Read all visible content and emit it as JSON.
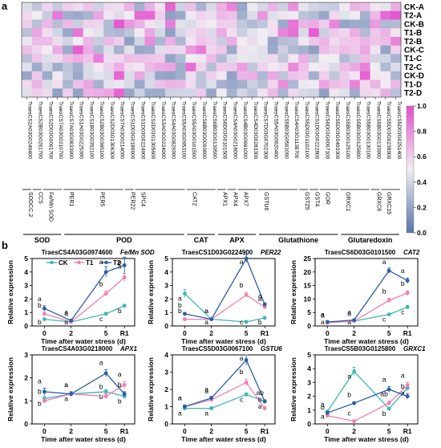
{
  "panels": {
    "a": "a",
    "b": "b"
  },
  "heatmap": {
    "rows": [
      "CK-A",
      "T2-A",
      "CK-B",
      "T1-B",
      "T2-B",
      "CK-C",
      "T1-C",
      "T2-C",
      "CK-D",
      "T1-D",
      "T2-D"
    ],
    "genes": [
      "TraesCS2A03G0249400",
      "TraesCS2B03G0261700",
      "TraesCS2D03G0061700",
      "TraesCS7A03G0210700",
      "TraesCS7A03G0833900",
      "TraesCS1A03G0225300",
      "TraesCS1B03G0352100",
      "TraesCS2B03G0365100",
      "TraesCS2D03G1306300",
      "TraesCS7A03G0214000",
      "TraesCS1D03G0186600",
      "TraesCS1D03G0224900",
      "TraesCS2D03G1305600",
      "TraesCS3A03G0224900",
      "TraesCS4A03G0829300",
      "TraesCS5A03G0953100",
      "TraesCS5A03G0101500",
      "TraesCS6B03G0093800",
      "TraesCS6B03G0139500",
      "TraesCS6D03G0101500",
      "TraesCS4A03G0218000",
      "TraesCS4B03G0661000",
      "TraesCS4D03G0283300",
      "TraesCS7D03G0702300",
      "TraesCS5A03G0620400",
      "TraesCS5B03G0561000",
      "TraesCS4A03G1138700",
      "TraesCS5D03G1102100",
      "TraesCS1D03G0222800",
      "TraesCS6D03G0067100",
      "TraesCS5D03G0493300",
      "TraesCS5B03G0125100",
      "TraesCS5B03G0125800",
      "TraesCS5B03G0130100",
      "TraesCS6B03G0133900",
      "TraesCS5D03G0238900",
      "TraesCS5D03G0251400"
    ],
    "colorbar": {
      "ticks": [
        "1.0",
        "0.8",
        "0.6",
        "0.4",
        "0.2",
        "0.0"
      ],
      "low": "#5874a9",
      "mid": "#f1eef3",
      "high": "#e44fcd"
    },
    "subgroups": [
      {
        "label": "SODCC.2",
        "start": 0,
        "end": 0
      },
      {
        "label": "CCS",
        "start": 1,
        "end": 1
      },
      {
        "label": "Fe/Mn SOD",
        "start": 2,
        "end": 3
      },
      {
        "label": "PER1",
        "start": 4,
        "end": 6
      },
      {
        "label": "PER5",
        "start": 7,
        "end": 9
      },
      {
        "label": "PER22",
        "start": 10,
        "end": 10
      },
      {
        "label": "SPC4",
        "start": 11,
        "end": 15
      },
      {
        "label": "CAT2",
        "start": 16,
        "end": 18
      },
      {
        "label": "APX1",
        "start": 19,
        "end": 19
      },
      {
        "label": "APX4",
        "start": 20,
        "end": 20
      },
      {
        "label": "APX7",
        "start": 21,
        "end": 22
      },
      {
        "label": "GSTU6",
        "start": 23,
        "end": 26
      },
      {
        "label": "GSTZ5",
        "start": 27,
        "end": 27
      },
      {
        "label": "GST4",
        "start": 28,
        "end": 28
      },
      {
        "label": "GOR",
        "start": 29,
        "end": 30
      },
      {
        "label": "GRXC1",
        "start": 31,
        "end": 33
      },
      {
        "label": "GRXC6",
        "start": 34,
        "end": 34
      },
      {
        "label": "GRXC15",
        "start": 35,
        "end": 36
      }
    ],
    "groups": [
      {
        "label": "SOD",
        "start": 0,
        "end": 3
      },
      {
        "label": "POD",
        "start": 4,
        "end": 15
      },
      {
        "label": "CAT",
        "start": 16,
        "end": 18
      },
      {
        "label": "APX",
        "start": 19,
        "end": 22
      },
      {
        "label": "Glutathione",
        "start": 23,
        "end": 30
      },
      {
        "label": "Glutaredoxin",
        "start": 31,
        "end": 36
      }
    ]
  },
  "chart_data": [
    {
      "type": "line",
      "title_id": "TraesCS4A03G0974600",
      "title_name": "Fe/Mn SOD",
      "x": [
        "0",
        "2",
        "5",
        "R1"
      ],
      "xlabel": "Time after water stress (d)",
      "ylabel": "Relative expression",
      "yticks": [
        0,
        1,
        2,
        3,
        4,
        5
      ],
      "ylim": [
        0,
        5
      ],
      "series": [
        {
          "name": "CK",
          "color": "#3fb7b7",
          "values": [
            0.5,
            0.3,
            0.9,
            1.5
          ],
          "err": [
            0.1,
            0.1,
            0.1,
            0.1
          ],
          "sig": [
            "b",
            "a",
            "c",
            "b"
          ]
        },
        {
          "name": "T1",
          "color": "#ee7fb3",
          "values": [
            0.9,
            0.3,
            2.4,
            3.6
          ],
          "err": [
            0.1,
            0.1,
            0.2,
            0.3
          ],
          "sig": [
            "b",
            "a",
            "b",
            "a"
          ]
        },
        {
          "name": "T2",
          "color": "#2a5ea8",
          "values": [
            1.3,
            0.4,
            4.0,
            4.5
          ],
          "err": [
            0.2,
            0.1,
            0.4,
            0.6
          ],
          "sig": [
            "a",
            "a",
            "a",
            "a"
          ]
        }
      ]
    },
    {
      "type": "line",
      "title_id": "TraesCS1D03G0224900",
      "title_name": "PER22",
      "x": [
        "0",
        "2",
        "5",
        "R1"
      ],
      "xlabel": "Time after water stress (d)",
      "ylabel": "Relative expression",
      "yticks": [
        0,
        1,
        2,
        3,
        4,
        5
      ],
      "ylim": [
        0,
        5
      ],
      "series": [
        {
          "name": "CK",
          "color": "#3fb7b7",
          "values": [
            2.4,
            0.5,
            0.3,
            0.6
          ],
          "err": [
            0.3,
            0.1,
            0.1,
            0.1
          ],
          "sig": [
            "a",
            "a",
            "c",
            "b"
          ]
        },
        {
          "name": "T1",
          "color": "#ee7fb3",
          "values": [
            0.5,
            0.5,
            2.3,
            1.4
          ],
          "err": [
            0.1,
            0.1,
            0.2,
            0.1
          ],
          "sig": [
            "b",
            "a",
            "b",
            "a"
          ]
        },
        {
          "name": "T2",
          "color": "#2a5ea8",
          "values": [
            0.9,
            0.5,
            5.0,
            1.6
          ],
          "err": [
            0.1,
            0.1,
            0.3,
            0.1
          ],
          "sig": [
            "b",
            "a",
            "a",
            "a"
          ]
        }
      ]
    },
    {
      "type": "line",
      "title_id": "TraesCS6D03G0101500",
      "title_name": "CAT2",
      "x": [
        "0",
        "2",
        "5",
        "R1"
      ],
      "xlabel": "Time after water stress (d)",
      "ylabel": "Relative expression",
      "yticks": [
        0,
        5,
        10,
        15,
        20,
        25
      ],
      "ylim": [
        0,
        25
      ],
      "series": [
        {
          "name": "CK",
          "color": "#3fb7b7",
          "values": [
            1.2,
            1.8,
            4.3,
            7.0
          ],
          "err": [
            0.2,
            0.2,
            0.4,
            0.6
          ],
          "sig": [
            "a",
            "a",
            "c",
            "c"
          ]
        },
        {
          "name": "T1",
          "color": "#ee7fb3",
          "values": [
            1.2,
            1.8,
            9.5,
            12.2
          ],
          "err": [
            0.2,
            0.2,
            0.8,
            0.9
          ],
          "sig": [
            "a",
            "a",
            "b",
            "b"
          ]
        },
        {
          "name": "T2",
          "color": "#2a5ea8",
          "values": [
            1.5,
            2.2,
            20.5,
            16.8
          ],
          "err": [
            0.2,
            0.3,
            1.0,
            1.0
          ],
          "sig": [
            "a",
            "a",
            "a",
            "a"
          ]
        }
      ]
    },
    {
      "type": "line",
      "title_id": "TraesCS4A03G0218000",
      "title_name": "APX1",
      "x": [
        "0",
        "2",
        "5",
        "R1"
      ],
      "xlabel": "Time after water stress (d)",
      "ylabel": "Relative expression",
      "yticks": [
        0,
        1,
        2,
        3
      ],
      "ylim": [
        0,
        3
      ],
      "series": [
        {
          "name": "CK",
          "color": "#3fb7b7",
          "values": [
            1.1,
            1.3,
            1.4,
            1.2
          ],
          "err": [
            0.1,
            0.1,
            0.1,
            0.1
          ],
          "sig": [
            "b",
            "a",
            "b",
            "b"
          ]
        },
        {
          "name": "T1",
          "color": "#ee7fb3",
          "values": [
            1.0,
            1.3,
            1.2,
            1.7
          ],
          "err": [
            0.1,
            0.1,
            0.1,
            0.15
          ],
          "sig": [
            "b",
            "a",
            "b",
            "a"
          ]
        },
        {
          "name": "T2",
          "color": "#2a5ea8",
          "values": [
            1.4,
            1.3,
            2.2,
            1.3
          ],
          "err": [
            0.15,
            0.1,
            0.15,
            0.1
          ],
          "sig": [
            "a",
            "a",
            "a",
            "b"
          ]
        }
      ]
    },
    {
      "type": "line",
      "title_id": "TraesCS5D03G0067100",
      "title_name": "GSTU6",
      "x": [
        "0",
        "2",
        "5",
        "R1"
      ],
      "xlabel": "Time after water stress (d)",
      "ylabel": "Relative expression",
      "yticks": [
        0,
        1,
        2,
        3,
        4
      ],
      "ylim": [
        0,
        4
      ],
      "series": [
        {
          "name": "CK",
          "color": "#3fb7b7",
          "values": [
            0.9,
            0.9,
            1.7,
            1.3
          ],
          "err": [
            0.1,
            0.1,
            0.1,
            0.1
          ],
          "sig": [
            "a",
            "a",
            "c",
            "a"
          ]
        },
        {
          "name": "T1",
          "color": "#ee7fb3",
          "values": [
            1.0,
            1.4,
            2.4,
            0.9
          ],
          "err": [
            0.1,
            0.1,
            0.2,
            0.1
          ],
          "sig": [
            "a",
            "a",
            "b",
            "b"
          ]
        },
        {
          "name": "T2",
          "color": "#2a5ea8",
          "values": [
            1.0,
            1.5,
            3.7,
            1.3
          ],
          "err": [
            0.1,
            0.1,
            0.3,
            0.1
          ],
          "sig": [
            "a",
            "a",
            "a",
            "ab"
          ]
        }
      ]
    },
    {
      "type": "line",
      "title_id": "TraesCS5B03G0125800",
      "title_name": "GRXC1",
      "x": [
        "0",
        "2",
        "5",
        "R1"
      ],
      "xlabel": "Time after water stress (d)",
      "ylabel": "Relative expression",
      "yticks": [
        0,
        1,
        2,
        3,
        4,
        5
      ],
      "ylim": [
        0,
        5
      ],
      "series": [
        {
          "name": "CK",
          "color": "#3fb7b7",
          "values": [
            0.9,
            3.8,
            1.1,
            2.6
          ],
          "err": [
            0.1,
            0.3,
            0.1,
            0.2
          ],
          "sig": [
            "a",
            "a",
            "b",
            "a"
          ]
        },
        {
          "name": "T1",
          "color": "#ee7fb3",
          "values": [
            0.6,
            0.2,
            1.5,
            2.8
          ],
          "err": [
            0.1,
            0.05,
            0.15,
            0.2
          ],
          "sig": [
            "b",
            "c",
            "ab",
            "a"
          ]
        },
        {
          "name": "T2",
          "color": "#2a5ea8",
          "values": [
            0.8,
            1.5,
            2.5,
            2.0
          ],
          "err": [
            0.1,
            0.1,
            0.2,
            0.2
          ],
          "sig": [
            "a",
            "b",
            "a",
            "b"
          ]
        }
      ]
    }
  ]
}
